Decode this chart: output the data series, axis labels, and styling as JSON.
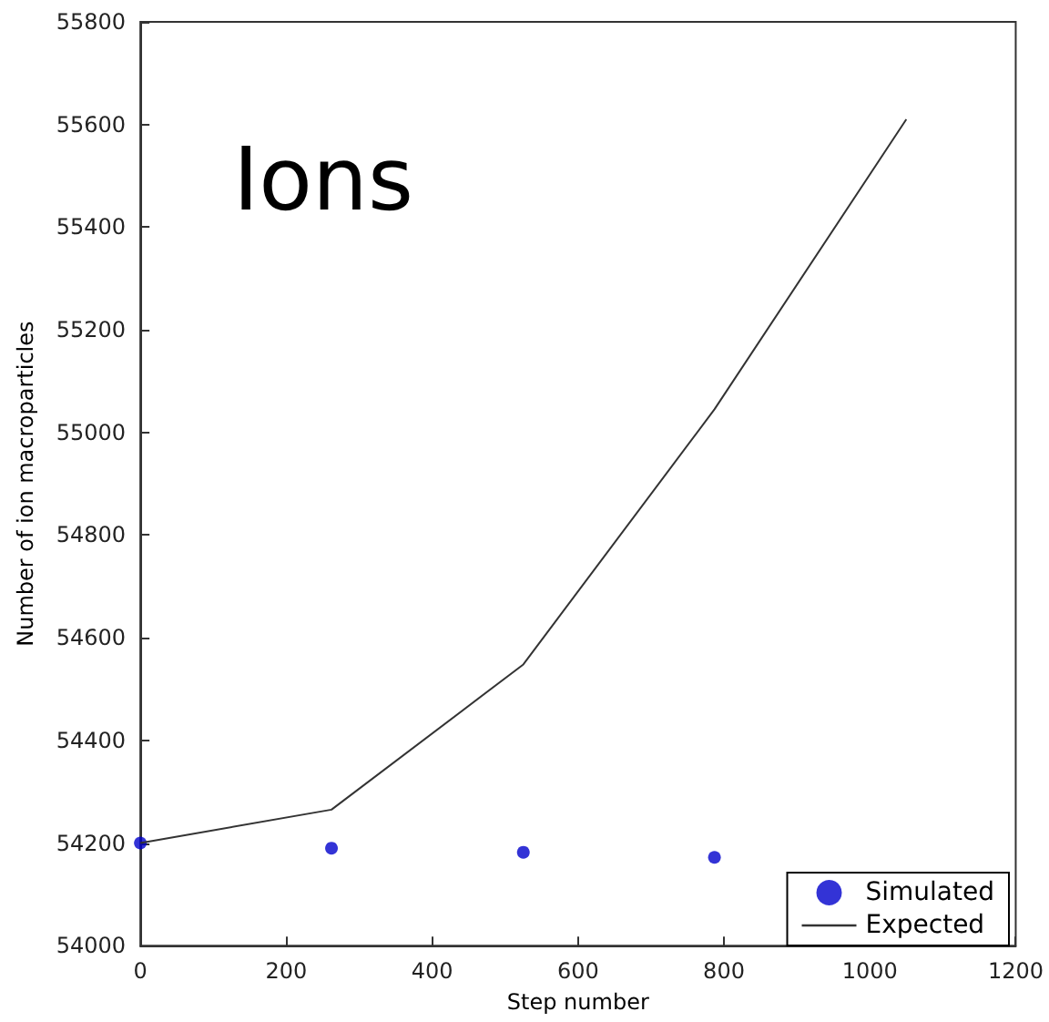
{
  "chart_data": {
    "type": "line",
    "xlabel": "Step number",
    "ylabel": "Number of ion macroparticles",
    "annotations": [
      "Ions"
    ],
    "xlim": [
      0,
      1200
    ],
    "xticks": [
      0,
      200,
      400,
      600,
      800,
      1000,
      1200
    ],
    "ylim": [
      54000,
      55800
    ],
    "yticks": [
      54000,
      54200,
      54400,
      54600,
      54800,
      55000,
      55200,
      55400,
      55600,
      55800
    ],
    "grid": false,
    "legend": "bottom right",
    "series": [
      {
        "name": "Simulated",
        "type": "scatter",
        "marker": "circle",
        "color": "#0000cc",
        "x": [
          0,
          262,
          525,
          787
        ],
        "values": [
          54200,
          54190,
          54182,
          54172
        ]
      },
      {
        "name": "Expected",
        "color": "#333333",
        "x": [
          0,
          262,
          525,
          787,
          1050
        ],
        "values": [
          54200,
          54265,
          54548,
          55045,
          55610
        ]
      }
    ]
  }
}
